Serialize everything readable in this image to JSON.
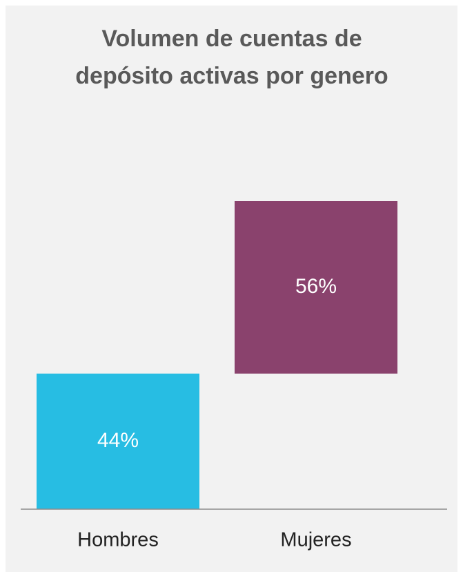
{
  "chart_data": {
    "type": "waterfall",
    "title": [
      "Volumen de cuentas de",
      "depósito activas por genero"
    ],
    "categories": [
      "Hombres",
      "Mujeres"
    ],
    "values": [
      44,
      56
    ],
    "value_labels": [
      "44%",
      "56%"
    ],
    "colors": [
      "#27bde3",
      "#8a426d"
    ]
  }
}
